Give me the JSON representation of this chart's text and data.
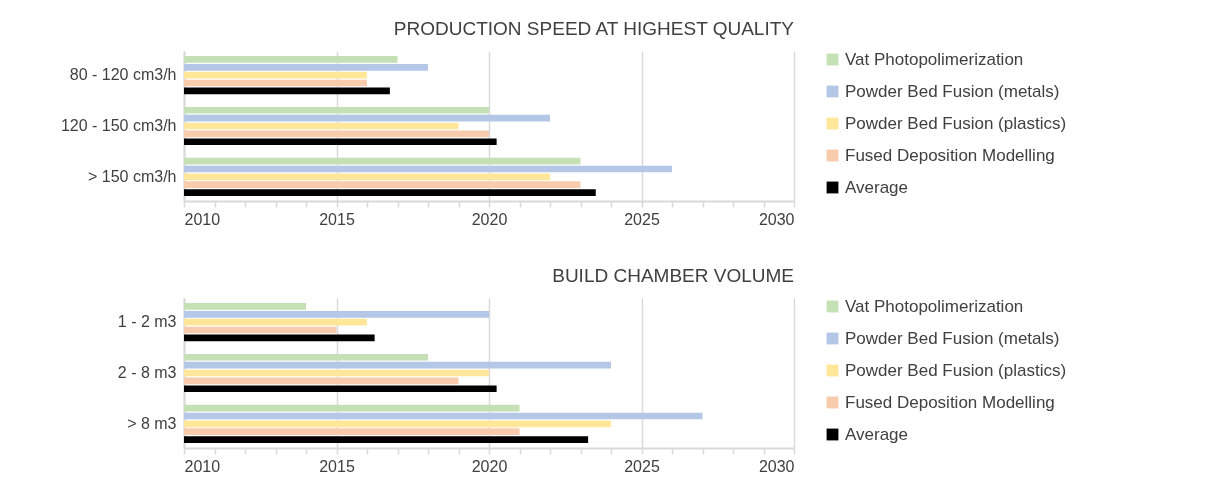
{
  "chart_data": [
    {
      "type": "bar",
      "orientation": "horizontal",
      "title": "PRODUCTION SPEED AT HIGHEST QUALITY",
      "categories": [
        "80 - 120 cm3/h",
        "120 - 150 cm3/h",
        "> 150 cm3/h"
      ],
      "series": [
        {
          "name": "Vat Photopolimerization",
          "color": "#c5e0b4",
          "values": [
            2017,
            2020,
            2023
          ]
        },
        {
          "name": "Powder Bed Fusion (metals)",
          "color": "#b4c7e7",
          "values": [
            2018,
            2022,
            2026
          ]
        },
        {
          "name": "Powder Bed Fusion (plastics)",
          "color": "#ffe699",
          "values": [
            2016,
            2019,
            2022
          ]
        },
        {
          "name": "Fused Deposition Modelling",
          "color": "#f8cbad",
          "values": [
            2016,
            2020,
            2023
          ]
        },
        {
          "name": "Average",
          "color": "#000000",
          "values": [
            2016.75,
            2020.25,
            2023.5
          ]
        }
      ],
      "xlim": [
        2010,
        2030
      ],
      "xticks": [
        2010,
        {
          "value": 2011,
          "label": null
        },
        {
          "value": 2012,
          "label": null
        },
        {
          "value": 2013,
          "label": null
        },
        {
          "value": 2014,
          "label": null
        },
        2015,
        {
          "value": 2016,
          "label": null
        },
        {
          "value": 2017,
          "label": null
        },
        {
          "value": 2018,
          "label": null
        },
        {
          "value": 2019,
          "label": null
        },
        2020,
        {
          "value": 2021,
          "label": null
        },
        {
          "value": 2022,
          "label": null
        },
        {
          "value": 2023,
          "label": null
        },
        {
          "value": 2024,
          "label": null
        },
        2025,
        {
          "value": 2026,
          "label": null
        },
        {
          "value": 2027,
          "label": null
        },
        {
          "value": 2028,
          "label": null
        },
        {
          "value": 2029,
          "label": null
        },
        2030
      ],
      "grid": "x",
      "legend": "right"
    },
    {
      "type": "bar",
      "orientation": "horizontal",
      "title": "BUILD CHAMBER VOLUME",
      "categories": [
        "1 - 2 m3",
        "2 - 8 m3",
        "> 8 m3"
      ],
      "series": [
        {
          "name": "Vat Photopolimerization",
          "color": "#c5e0b4",
          "values": [
            2014,
            2018,
            2021
          ]
        },
        {
          "name": "Powder Bed Fusion (metals)",
          "color": "#b4c7e7",
          "values": [
            2020,
            2024,
            2027
          ]
        },
        {
          "name": "Powder Bed Fusion (plastics)",
          "color": "#ffe699",
          "values": [
            2016,
            2020,
            2024
          ]
        },
        {
          "name": "Fused Deposition Modelling",
          "color": "#f8cbad",
          "values": [
            2015,
            2019,
            2021
          ]
        },
        {
          "name": "Average",
          "color": "#000000",
          "values": [
            2016.25,
            2020.25,
            2023.25
          ]
        }
      ],
      "xlim": [
        2010,
        2030
      ],
      "xticks": [
        2010,
        {
          "value": 2011,
          "label": null
        },
        {
          "value": 2012,
          "label": null
        },
        {
          "value": 2013,
          "label": null
        },
        {
          "value": 2014,
          "label": null
        },
        2015,
        {
          "value": 2016,
          "label": null
        },
        {
          "value": 2017,
          "label": null
        },
        {
          "value": 2018,
          "label": null
        },
        {
          "value": 2019,
          "label": null
        },
        2020,
        {
          "value": 2021,
          "label": null
        },
        {
          "value": 2022,
          "label": null
        },
        {
          "value": 2023,
          "label": null
        },
        {
          "value": 2024,
          "label": null
        },
        2025,
        {
          "value": 2026,
          "label": null
        },
        {
          "value": 2027,
          "label": null
        },
        {
          "value": 2028,
          "label": null
        },
        {
          "value": 2029,
          "label": null
        },
        2030
      ],
      "grid": "x",
      "legend": "right"
    }
  ]
}
